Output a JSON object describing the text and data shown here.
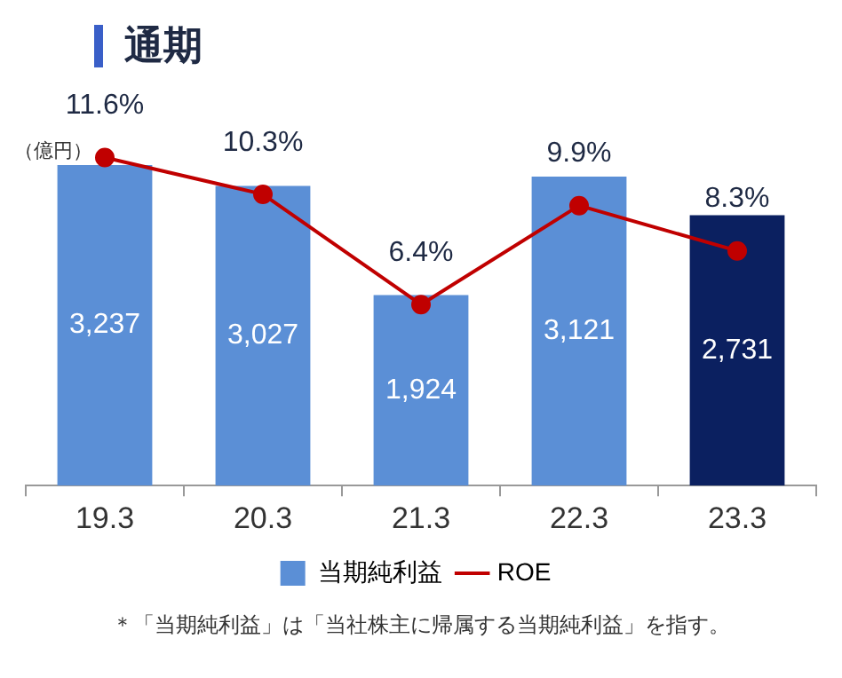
{
  "chart_data": {
    "type": "bar",
    "title": "通期",
    "ylabel": "（億円）",
    "categories": [
      "19.3",
      "20.3",
      "21.3",
      "22.3",
      "23.3"
    ],
    "series": [
      {
        "name": "当期純利益",
        "color": "#5b8fd6",
        "colors": [
          "#5b8fd6",
          "#5b8fd6",
          "#5b8fd6",
          "#5b8fd6",
          "#0b2060"
        ],
        "values": [
          3237,
          3027,
          1924,
          3121,
          2731
        ],
        "value_labels": [
          "3,237",
          "3,027",
          "1,924",
          "3,121",
          "2,731"
        ]
      },
      {
        "name": "ROE",
        "type": "line",
        "axis": "y2",
        "color": "#c00000",
        "marker": "circle",
        "values": [
          11.6,
          10.3,
          6.4,
          9.9,
          8.3
        ],
        "value_labels": [
          "11.6%",
          "10.3%",
          "6.4%",
          "9.9%",
          "8.3%"
        ]
      }
    ],
    "legend": "bottom",
    "annotations": [
      "＊「当期純利益」は「当社株主に帰属する当期純利益」を指す。"
    ]
  }
}
